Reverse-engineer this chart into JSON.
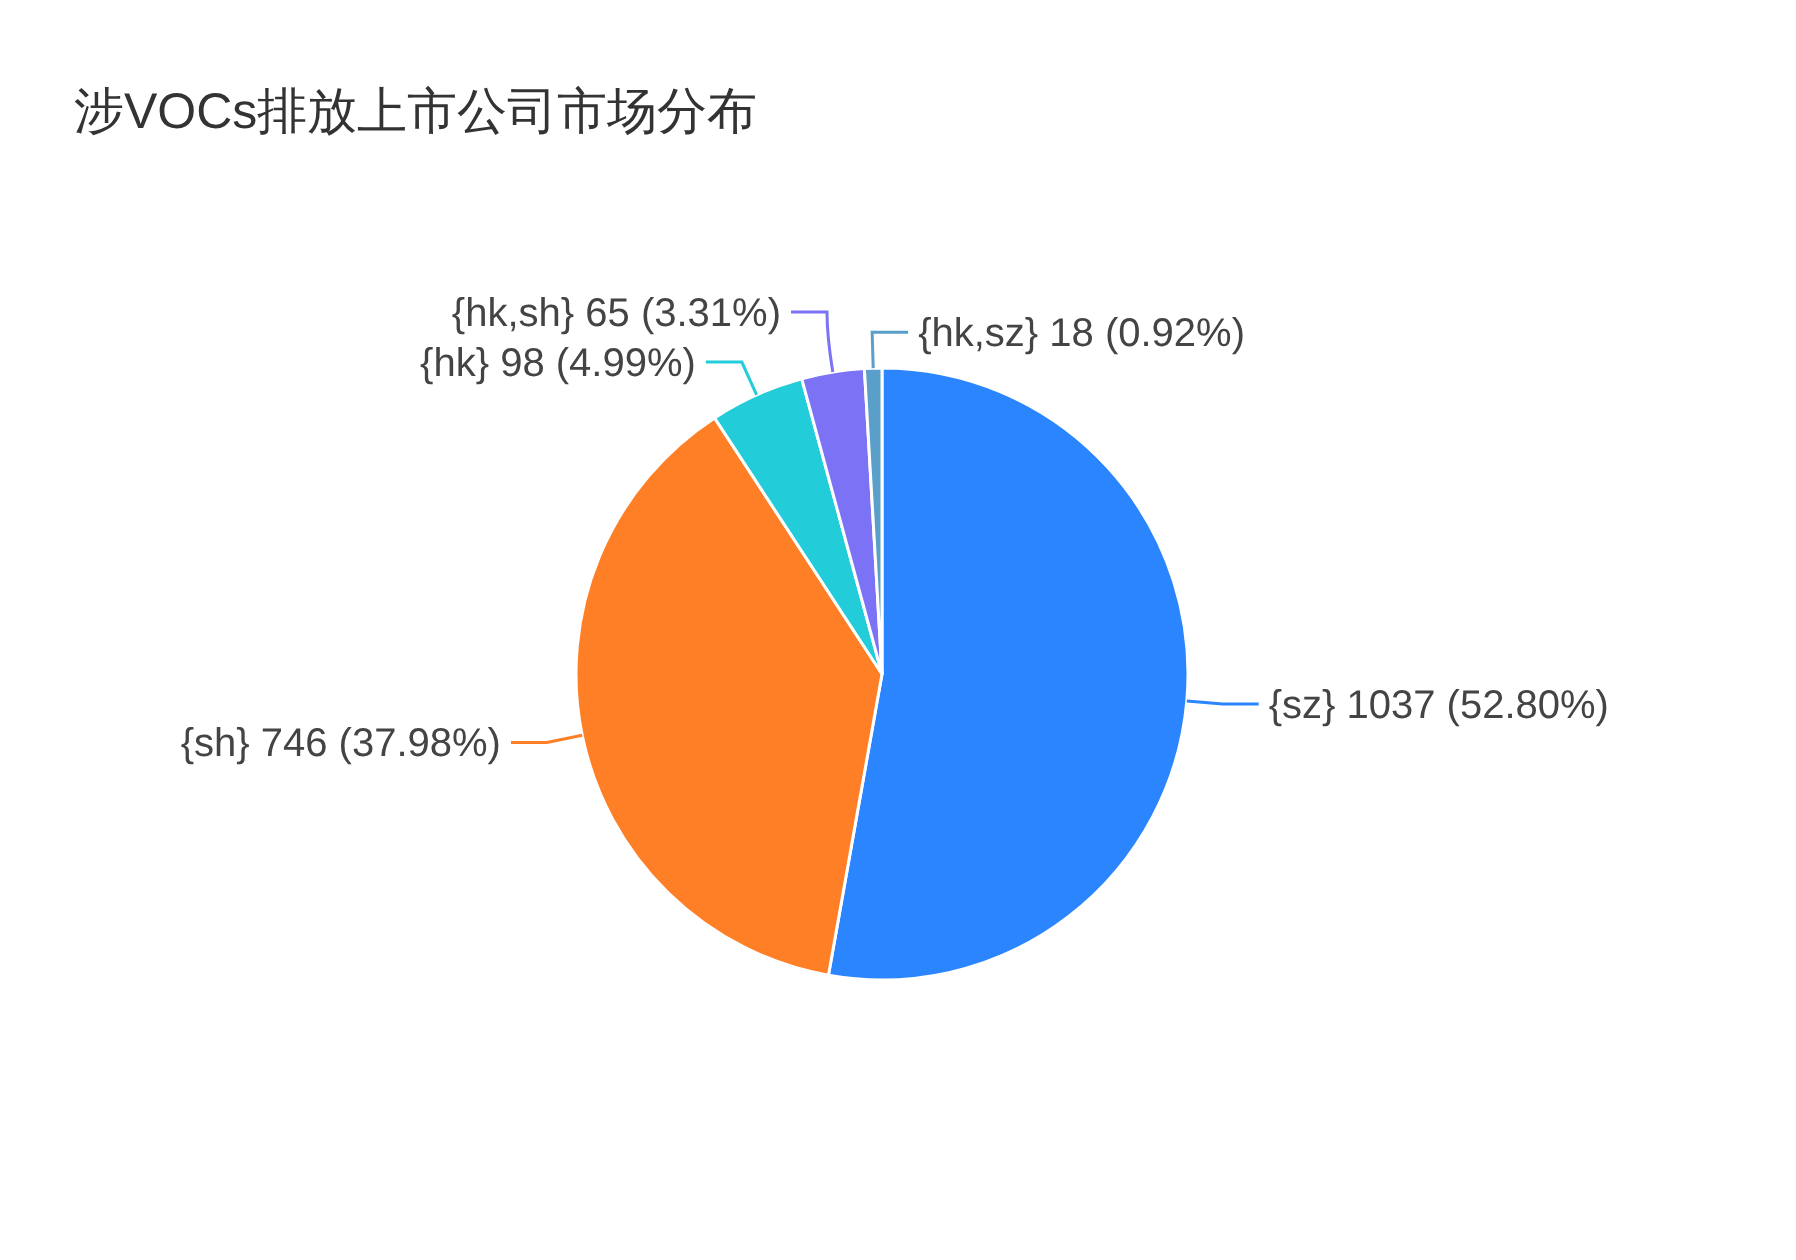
{
  "chart_data": {
    "type": "pie",
    "title": "涉VOCs排放上市公司市场分布",
    "categories": [
      "{sz}",
      "{sh}",
      "{hk}",
      "{hk,sh}",
      "{hk,sz}"
    ],
    "values": [
      1037,
      746,
      98,
      65,
      18
    ],
    "value_labels": [
      "1037 (52.80%)",
      "746 (37.98%)",
      "98 (4.99%)",
      "65 (3.31%)",
      "18 (0.92%)"
    ],
    "colors": [
      "#2a85ff",
      "#ff7f27",
      "#22cdd9",
      "#7b72f5",
      "#5a9fc9"
    ]
  }
}
